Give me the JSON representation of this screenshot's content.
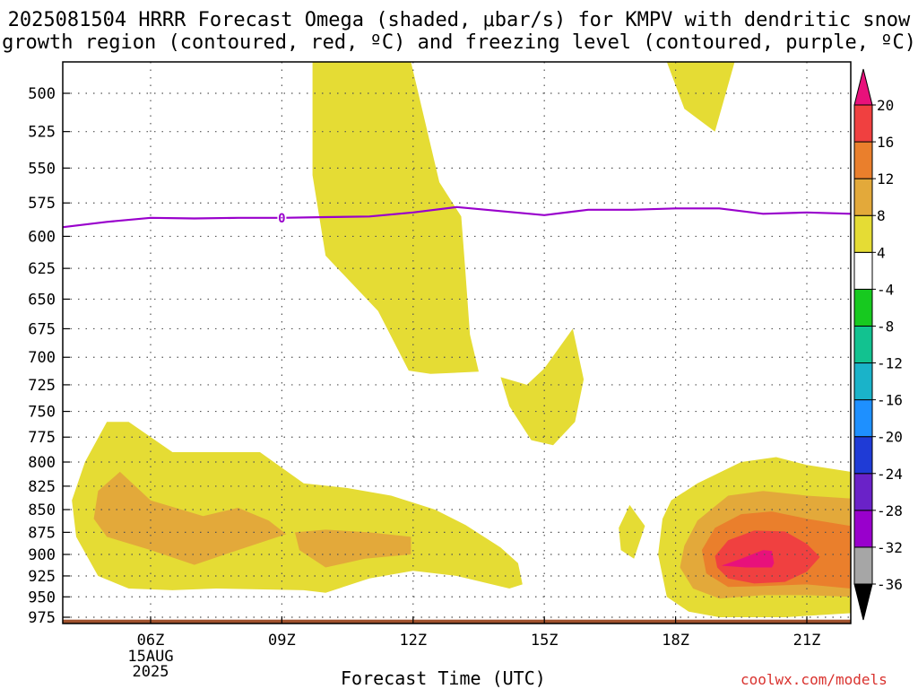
{
  "title_line1": "2025081504 HRRR Forecast Omega (shaded, μbar/s) for KMPV with dendritic snow",
  "title_line2": "growth region (contoured, red, ºC) and freezing level (contoured, purple, ºC)",
  "credit": "coolwx.com/models",
  "chart_data": {
    "type": "time-height contour",
    "xlabel": "Forecast Time (UTC)",
    "ylabel": "",
    "x_range_hours": [
      4,
      22
    ],
    "x_ticks": [
      {
        "hour": 6,
        "label": "06Z",
        "sub": [
          "15AUG",
          "2025"
        ]
      },
      {
        "hour": 9,
        "label": "09Z"
      },
      {
        "hour": 12,
        "label": "12Z"
      },
      {
        "hour": 15,
        "label": "15Z"
      },
      {
        "hour": 18,
        "label": "18Z"
      },
      {
        "hour": 21,
        "label": "21Z"
      }
    ],
    "y_levels_mb": [
      500,
      525,
      550,
      575,
      600,
      625,
      650,
      675,
      700,
      725,
      750,
      775,
      800,
      825,
      850,
      875,
      900,
      925,
      950,
      975
    ],
    "y_range_mb": [
      480,
      980
    ],
    "grid": true,
    "colorbar": {
      "unit": "μbar/s",
      "boundaries": [
        -36,
        -32,
        -28,
        -24,
        -20,
        -16,
        -12,
        -8,
        -4,
        4,
        8,
        12,
        16,
        20
      ],
      "labels": [
        "20",
        "16",
        "12",
        "8",
        "4",
        "-4",
        "-8",
        "-12",
        "-16",
        "-20",
        "-24",
        "-28",
        "-32",
        "-36"
      ],
      "colors": [
        "#000000",
        "#a6a6a6",
        "#9900cc",
        "#6a22c8",
        "#1f3bd6",
        "#1e90ff",
        "#1ab3c9",
        "#12c290",
        "#17c91f",
        "#ffffff",
        "#e5dc34",
        "#e3a93a",
        "#ea7f2c",
        "#f04040",
        "#e8117b"
      ]
    },
    "freezing_level": {
      "label": "0",
      "color": "#9900cc",
      "points": [
        [
          4.0,
          593
        ],
        [
          5.0,
          589
        ],
        [
          6.0,
          586
        ],
        [
          7.0,
          586.5
        ],
        [
          8.0,
          586
        ],
        [
          9.0,
          586
        ],
        [
          10.0,
          585.5
        ],
        [
          11.0,
          585
        ],
        [
          12.0,
          582
        ],
        [
          13.0,
          578
        ],
        [
          14.0,
          581
        ],
        [
          15.0,
          584
        ],
        [
          16.0,
          580
        ],
        [
          17.0,
          580
        ],
        [
          18.0,
          579
        ],
        [
          19.0,
          579
        ],
        [
          20.0,
          583
        ],
        [
          21.0,
          582
        ],
        [
          22.0,
          583
        ]
      ]
    },
    "omega_regions": [
      {
        "level": "4-8",
        "color": "#e5dc34",
        "points": [
          [
            9.7,
            480
          ],
          [
            11.95,
            480
          ],
          [
            12.6,
            560
          ],
          [
            13.1,
            585
          ],
          [
            13.2,
            630
          ],
          [
            13.3,
            680
          ],
          [
            13.5,
            713
          ],
          [
            12.4,
            715
          ],
          [
            11.9,
            712
          ],
          [
            11.2,
            660
          ],
          [
            10.0,
            615
          ],
          [
            9.7,
            555
          ]
        ]
      },
      {
        "level": "4-8",
        "color": "#e5dc34",
        "points": [
          [
            14.6,
            725
          ],
          [
            15.0,
            710
          ],
          [
            15.65,
            675
          ],
          [
            15.9,
            720
          ],
          [
            15.7,
            760
          ],
          [
            15.2,
            783
          ],
          [
            14.7,
            778
          ],
          [
            14.2,
            745
          ],
          [
            14.0,
            718
          ]
        ]
      },
      {
        "level": "4-8",
        "color": "#e5dc34",
        "points": [
          [
            17.8,
            480
          ],
          [
            19.35,
            480
          ],
          [
            18.9,
            525
          ],
          [
            18.2,
            510
          ]
        ]
      },
      {
        "level": "4-8",
        "color": "#e5dc34",
        "points": [
          [
            16.7,
            870
          ],
          [
            16.95,
            845
          ],
          [
            17.3,
            868
          ],
          [
            17.05,
            905
          ],
          [
            16.75,
            895
          ]
        ]
      },
      {
        "level": "4-8",
        "color": "#e5dc34",
        "points": [
          [
            4.5,
            800
          ],
          [
            5.0,
            760
          ],
          [
            5.5,
            760
          ],
          [
            6.5,
            790
          ],
          [
            8.5,
            790
          ],
          [
            9.5,
            822
          ],
          [
            10.5,
            827
          ],
          [
            11.5,
            835
          ],
          [
            12.5,
            850
          ],
          [
            13.2,
            867
          ],
          [
            14.0,
            892
          ],
          [
            14.4,
            910
          ],
          [
            14.5,
            935
          ],
          [
            14.2,
            940
          ],
          [
            13.0,
            925
          ],
          [
            12.0,
            919
          ],
          [
            11.0,
            928
          ],
          [
            10.0,
            945
          ],
          [
            9.5,
            942
          ],
          [
            7.5,
            940
          ],
          [
            6.5,
            942
          ],
          [
            5.5,
            940
          ],
          [
            4.8,
            925
          ],
          [
            4.3,
            880
          ],
          [
            4.2,
            840
          ]
        ]
      },
      {
        "level": "4-8",
        "color": "#e5dc34",
        "points": [
          [
            17.9,
            840
          ],
          [
            18.5,
            822
          ],
          [
            19.5,
            800
          ],
          [
            20.3,
            795
          ],
          [
            21.0,
            803
          ],
          [
            22.0,
            810
          ],
          [
            22.0,
            970
          ],
          [
            20.5,
            975
          ],
          [
            19.0,
            975
          ],
          [
            18.3,
            968
          ],
          [
            17.8,
            950
          ],
          [
            17.6,
            900
          ],
          [
            17.7,
            860
          ]
        ]
      },
      {
        "level": "8-12",
        "color": "#e3a93a",
        "points": [
          [
            4.8,
            830
          ],
          [
            5.3,
            810
          ],
          [
            6.0,
            840
          ],
          [
            7.2,
            857
          ],
          [
            8.0,
            848
          ],
          [
            8.7,
            862
          ],
          [
            9.1,
            877
          ],
          [
            8.0,
            895
          ],
          [
            7.0,
            912
          ],
          [
            6.0,
            895
          ],
          [
            5.0,
            880
          ],
          [
            4.7,
            860
          ]
        ]
      },
      {
        "level": "8-12",
        "color": "#e3a93a",
        "points": [
          [
            9.3,
            875
          ],
          [
            10.0,
            872
          ],
          [
            11.0,
            875
          ],
          [
            11.95,
            880
          ],
          [
            11.95,
            900
          ],
          [
            10.9,
            905
          ],
          [
            10.0,
            915
          ],
          [
            9.4,
            895
          ]
        ]
      },
      {
        "level": "8-12",
        "color": "#e3a93a",
        "points": [
          [
            18.2,
            890
          ],
          [
            18.5,
            862
          ],
          [
            19.2,
            835
          ],
          [
            20.0,
            830
          ],
          [
            21.0,
            835
          ],
          [
            22.0,
            838
          ],
          [
            22.0,
            950
          ],
          [
            21.0,
            948
          ],
          [
            20.0,
            948
          ],
          [
            19.0,
            952
          ],
          [
            18.4,
            940
          ],
          [
            18.1,
            915
          ]
        ]
      },
      {
        "level": "12-16",
        "color": "#ea7f2c",
        "points": [
          [
            18.6,
            895
          ],
          [
            18.9,
            870
          ],
          [
            19.5,
            855
          ],
          [
            20.2,
            852
          ],
          [
            21.0,
            860
          ],
          [
            22.0,
            868
          ],
          [
            22.0,
            940
          ],
          [
            21.0,
            935
          ],
          [
            20.0,
            937
          ],
          [
            19.2,
            938
          ],
          [
            18.7,
            922
          ]
        ]
      },
      {
        "level": "16-20",
        "color": "#f04040",
        "points": [
          [
            18.9,
            902
          ],
          [
            19.2,
            884
          ],
          [
            19.8,
            873
          ],
          [
            20.5,
            874
          ],
          [
            21.0,
            888
          ],
          [
            21.3,
            903
          ],
          [
            21.0,
            920
          ],
          [
            20.5,
            932
          ],
          [
            19.8,
            934
          ],
          [
            19.2,
            928
          ],
          [
            18.95,
            915
          ]
        ]
      },
      {
        "level": "20+",
        "color": "#e8117b",
        "points": [
          [
            19.05,
            913
          ],
          [
            19.5,
            905
          ],
          [
            20.0,
            895
          ],
          [
            20.2,
            896
          ],
          [
            20.25,
            910
          ],
          [
            20.2,
            915
          ],
          [
            19.6,
            915
          ]
        ]
      }
    ],
    "surface": {
      "color": "#a0522d",
      "level_mb_top": 978
    }
  }
}
